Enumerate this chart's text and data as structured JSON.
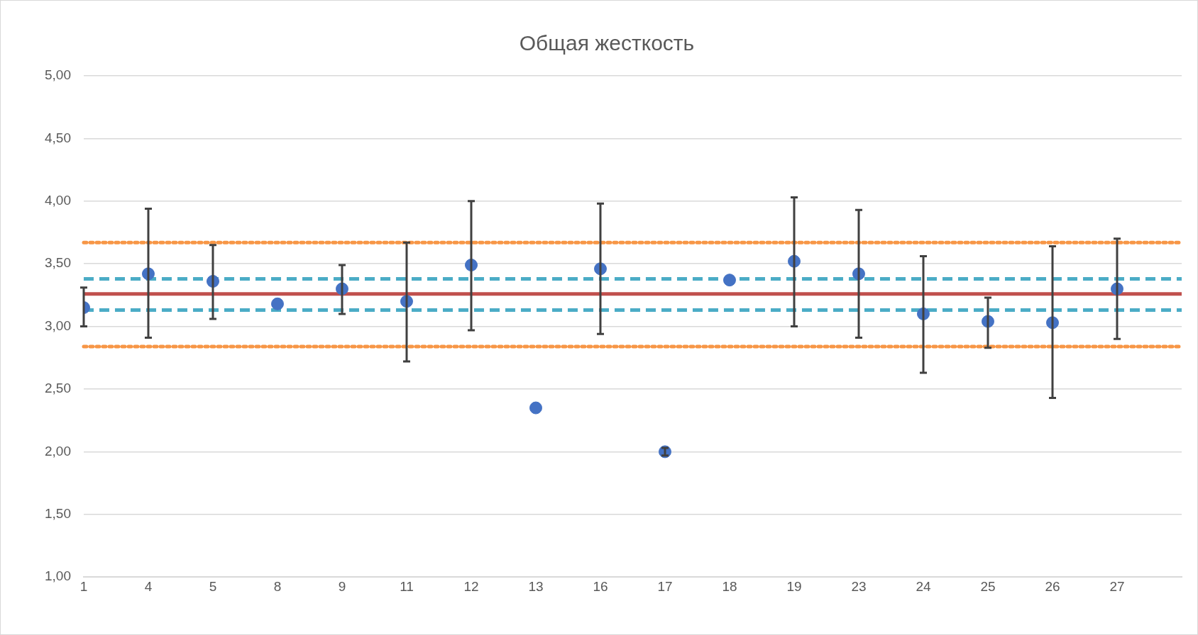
{
  "chart_data": {
    "type": "scatter",
    "title": "Общая жесткость",
    "categories": [
      "1",
      "4",
      "5",
      "8",
      "9",
      "11",
      "12",
      "13",
      "16",
      "17",
      "18",
      "19",
      "23",
      "24",
      "25",
      "26",
      "27"
    ],
    "series": [
      {
        "color": "#4472c4",
        "values": [
          3.15,
          3.42,
          3.36,
          3.18,
          3.3,
          3.2,
          3.49,
          2.35,
          3.46,
          2.0,
          3.37,
          3.52,
          3.42,
          3.1,
          3.04,
          3.03,
          3.3
        ],
        "errors": [
          [
            3.0,
            3.31
          ],
          [
            2.91,
            3.94
          ],
          [
            3.06,
            3.65
          ],
          null,
          [
            3.1,
            3.49
          ],
          [
            2.72,
            3.67
          ],
          [
            2.97,
            4.0
          ],
          null,
          [
            2.94,
            3.98
          ],
          [
            1.97,
            2.03
          ],
          null,
          [
            3.0,
            4.03
          ],
          [
            2.91,
            3.93
          ],
          [
            2.63,
            3.56
          ],
          [
            2.83,
            3.23
          ],
          [
            2.43,
            3.64
          ],
          [
            2.9,
            3.7
          ]
        ]
      }
    ],
    "ylim": [
      1,
      5
    ],
    "yticks": [
      {
        "value": 1,
        "label": "1,00"
      },
      {
        "value": 1.5,
        "label": "1,50"
      },
      {
        "value": 2,
        "label": "2,00"
      },
      {
        "value": 2.5,
        "label": "2,50"
      },
      {
        "value": 3,
        "label": "3,00"
      },
      {
        "value": 3.5,
        "label": "3,50"
      },
      {
        "value": 4,
        "label": "4,00"
      },
      {
        "value": 4.5,
        "label": "4,50"
      },
      {
        "value": 5,
        "label": "5,00"
      }
    ],
    "ref_lines": [
      {
        "axis": "y",
        "value": 3.26,
        "color": "#c0504d",
        "line_style": "solid"
      },
      {
        "axis": "y",
        "value": 3.38,
        "color": "#4bacc6",
        "line_style": "dashed"
      },
      {
        "axis": "y",
        "value": 3.13,
        "color": "#4bacc6",
        "line_style": "dashed"
      },
      {
        "axis": "y",
        "value": 3.67,
        "color": "#f79646",
        "line_style": "dotted"
      },
      {
        "axis": "y",
        "value": 2.84,
        "color": "#f79646",
        "line_style": "dotted"
      }
    ],
    "grid": "y",
    "marker": "circle",
    "legend": false
  }
}
